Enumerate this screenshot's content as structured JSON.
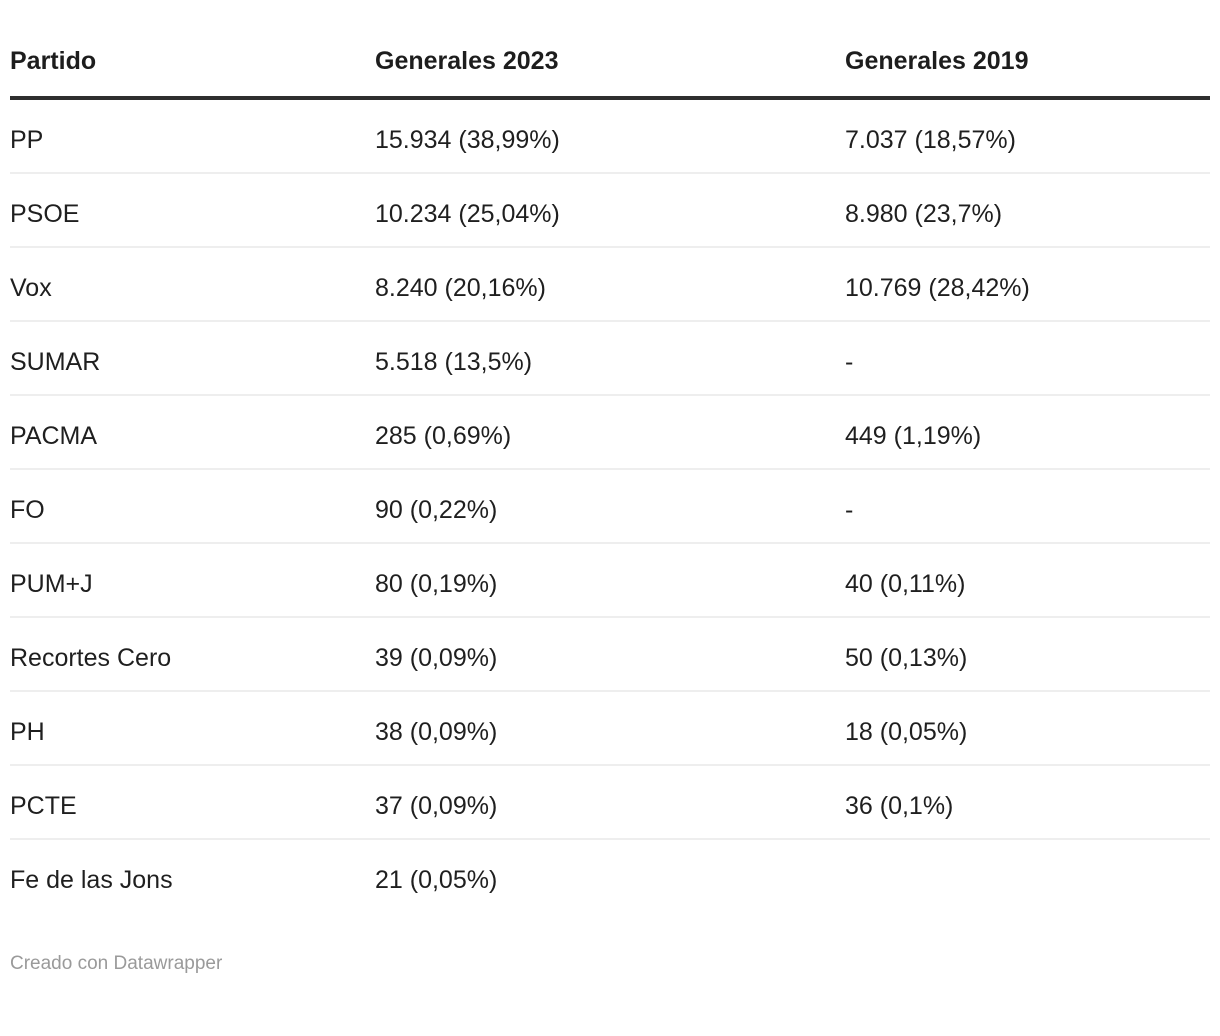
{
  "table": {
    "columns": [
      "Partido",
      "Generales 2023",
      "Generales 2019"
    ],
    "rows": [
      [
        "PP",
        "15.934 (38,99%)",
        "7.037 (18,57%)"
      ],
      [
        "PSOE",
        "10.234 (25,04%)",
        "8.980 (23,7%)"
      ],
      [
        "Vox",
        "8.240 (20,16%)",
        "10.769 (28,42%)"
      ],
      [
        "SUMAR",
        "5.518 (13,5%)",
        "-"
      ],
      [
        "PACMA",
        "285 (0,69%)",
        "449 (1,19%)"
      ],
      [
        "FO",
        "90 (0,22%)",
        "-"
      ],
      [
        "PUM+J",
        "80 (0,19%)",
        "40 (0,11%)"
      ],
      [
        "Recortes Cero",
        "39 (0,09%)",
        "50 (0,13%)"
      ],
      [
        "PH",
        "38 (0,09%)",
        "18 (0,05%)"
      ],
      [
        "PCTE",
        "37 (0,09%)",
        "36 (0,1%)"
      ],
      [
        "Fe de las Jons",
        "21 (0,05%)",
        ""
      ]
    ]
  },
  "footer": {
    "credit": "Creado con Datawrapper"
  },
  "colors": {
    "header_rule": "#2e2e2e",
    "row_divider": "#eeeeee",
    "text": "#1f1f1f",
    "credit_text": "#9a9a9a",
    "background": "#ffffff"
  },
  "chart_data": {
    "type": "table",
    "title": "",
    "columns": [
      "Partido",
      "Generales 2023",
      "Generales 2019"
    ],
    "rows": [
      [
        "PP",
        "15.934 (38,99%)",
        "7.037 (18,57%)"
      ],
      [
        "PSOE",
        "10.234 (25,04%)",
        "8.980 (23,7%)"
      ],
      [
        "Vox",
        "8.240 (20,16%)",
        "10.769 (28,42%)"
      ],
      [
        "SUMAR",
        "5.518 (13,5%)",
        "-"
      ],
      [
        "PACMA",
        "285 (0,69%)",
        "449 (1,19%)"
      ],
      [
        "FO",
        "90 (0,22%)",
        "-"
      ],
      [
        "PUM+J",
        "80 (0,19%)",
        "40 (0,11%)"
      ],
      [
        "Recortes Cero",
        "39 (0,09%)",
        "50 (0,13%)"
      ],
      [
        "PH",
        "38 (0,09%)",
        "18 (0,05%)"
      ],
      [
        "PCTE",
        "37 (0,09%)",
        "36 (0,1%)"
      ],
      [
        "Fe de las Jons",
        "21 (0,05%)",
        ""
      ]
    ],
    "series": [
      {
        "name": "Generales 2023 votos",
        "values": [
          15934,
          10234,
          8240,
          5518,
          285,
          90,
          80,
          39,
          38,
          37,
          21
        ]
      },
      {
        "name": "Generales 2023 pct",
        "values": [
          38.99,
          25.04,
          20.16,
          13.5,
          0.69,
          0.22,
          0.19,
          0.09,
          0.09,
          0.09,
          0.05
        ]
      },
      {
        "name": "Generales 2019 votos",
        "values": [
          7037,
          8980,
          10769,
          null,
          449,
          null,
          40,
          50,
          18,
          36,
          null
        ]
      },
      {
        "name": "Generales 2019 pct",
        "values": [
          18.57,
          23.7,
          28.42,
          null,
          1.19,
          null,
          0.11,
          0.13,
          0.05,
          0.1,
          null
        ]
      }
    ],
    "categories": [
      "PP",
      "PSOE",
      "Vox",
      "SUMAR",
      "PACMA",
      "FO",
      "PUM+J",
      "Recortes Cero",
      "PH",
      "PCTE",
      "Fe de las Jons"
    ],
    "footer_credit": "Creado con Datawrapper"
  }
}
